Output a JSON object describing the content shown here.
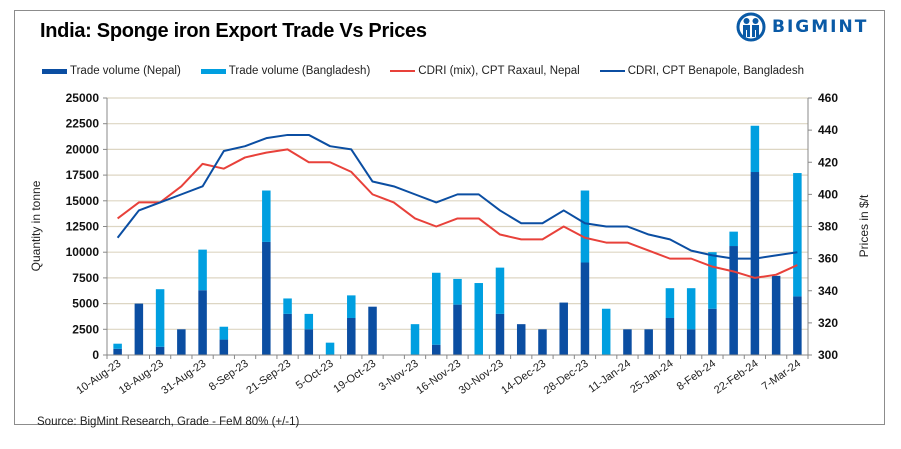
{
  "title": "India: Sponge iron Export Trade Vs Prices",
  "logo": {
    "text": "BIGMINT",
    "icon": "bigmint-people-icon",
    "color": "#0a5aa6"
  },
  "source": "Source: BigMint Research, Grade - FeM 80% (+/-1)",
  "legend": [
    {
      "label": "Trade volume (Nepal)",
      "kind": "bar",
      "color": "#0b4ea2"
    },
    {
      "label": "Trade volume (Bangladesh)",
      "kind": "bar",
      "color": "#009fe0"
    },
    {
      "label": "CDRI (mix), CPT Raxaul, Nepal",
      "kind": "line",
      "color": "#e8413a"
    },
    {
      "label": "CDRI, CPT Benapole, Bangladesh",
      "kind": "line",
      "color": "#0b4ea2"
    }
  ],
  "chart_data": {
    "type": "bar",
    "title": "India: Sponge iron Export Trade Vs Prices",
    "xlabel": "",
    "ylabel": "Quantity in tonne",
    "y2label": "Prices in $/t",
    "ylim": [
      0,
      25000
    ],
    "y2lim": [
      300,
      460
    ],
    "yticks": [
      0,
      2500,
      5000,
      7500,
      10000,
      12500,
      15000,
      17500,
      20000,
      22500,
      25000
    ],
    "y2ticks": [
      300,
      320,
      340,
      360,
      380,
      400,
      420,
      440,
      460
    ],
    "grid": true,
    "legend_position": "top",
    "x_tick_labels": [
      "10-Aug-23",
      "18-Aug-23",
      "31-Aug-23",
      "8-Sep-23",
      "21-Sep-23",
      "5-Oct-23",
      "19-Oct-23",
      "3-Nov-23",
      "16-Nov-23",
      "30-Nov-23",
      "14-Dec-23",
      "28-Dec-23",
      "11-Jan-24",
      "25-Jan-24",
      "8-Feb-24",
      "22-Feb-24",
      "7-Mar-24"
    ],
    "category_count": 33,
    "label_every": 2,
    "series": [
      {
        "name": "Trade volume (Nepal)",
        "type": "bar",
        "stack": "vol",
        "axis": "left",
        "color": "#0b4ea2",
        "values": [
          600,
          5000,
          800,
          2500,
          6300,
          1500,
          0,
          11000,
          4000,
          2500,
          0,
          3600,
          4700,
          0,
          0,
          1000,
          4900,
          0,
          4000,
          3000,
          2500,
          5100,
          9000,
          0,
          2500,
          2500,
          3600,
          2500,
          4500,
          10600,
          17800,
          7700,
          5700
        ]
      },
      {
        "name": "Trade volume (Bangladesh)",
        "type": "bar",
        "stack": "vol",
        "axis": "left",
        "color": "#009fe0",
        "values": [
          500,
          0,
          5600,
          0,
          3950,
          1250,
          0,
          5000,
          1500,
          1500,
          1200,
          2200,
          0,
          0,
          3000,
          7000,
          2500,
          7000,
          4500,
          0,
          0,
          0,
          7000,
          4500,
          0,
          0,
          2900,
          4000,
          5500,
          1400,
          4500,
          0,
          12000
        ]
      },
      {
        "name": "CDRI (mix), CPT Raxaul, Nepal",
        "type": "line",
        "axis": "right",
        "color": "#e8413a",
        "values": [
          385,
          395,
          395,
          405,
          419,
          416,
          423,
          426,
          428,
          420,
          420,
          414,
          400,
          395,
          385,
          380,
          385,
          385,
          375,
          372,
          372,
          380,
          373,
          370,
          370,
          365,
          360,
          360,
          355,
          352,
          348,
          350,
          356
        ]
      },
      {
        "name": "CDRI, CPT Benapole, Bangladesh",
        "type": "line",
        "axis": "right",
        "color": "#0b4ea2",
        "values": [
          373,
          390,
          395,
          400,
          405,
          427,
          430,
          435,
          437,
          437,
          430,
          428,
          408,
          405,
          400,
          395,
          400,
          400,
          390,
          382,
          382,
          390,
          382,
          380,
          380,
          375,
          372,
          365,
          362,
          360,
          360,
          362,
          364
        ]
      }
    ]
  }
}
